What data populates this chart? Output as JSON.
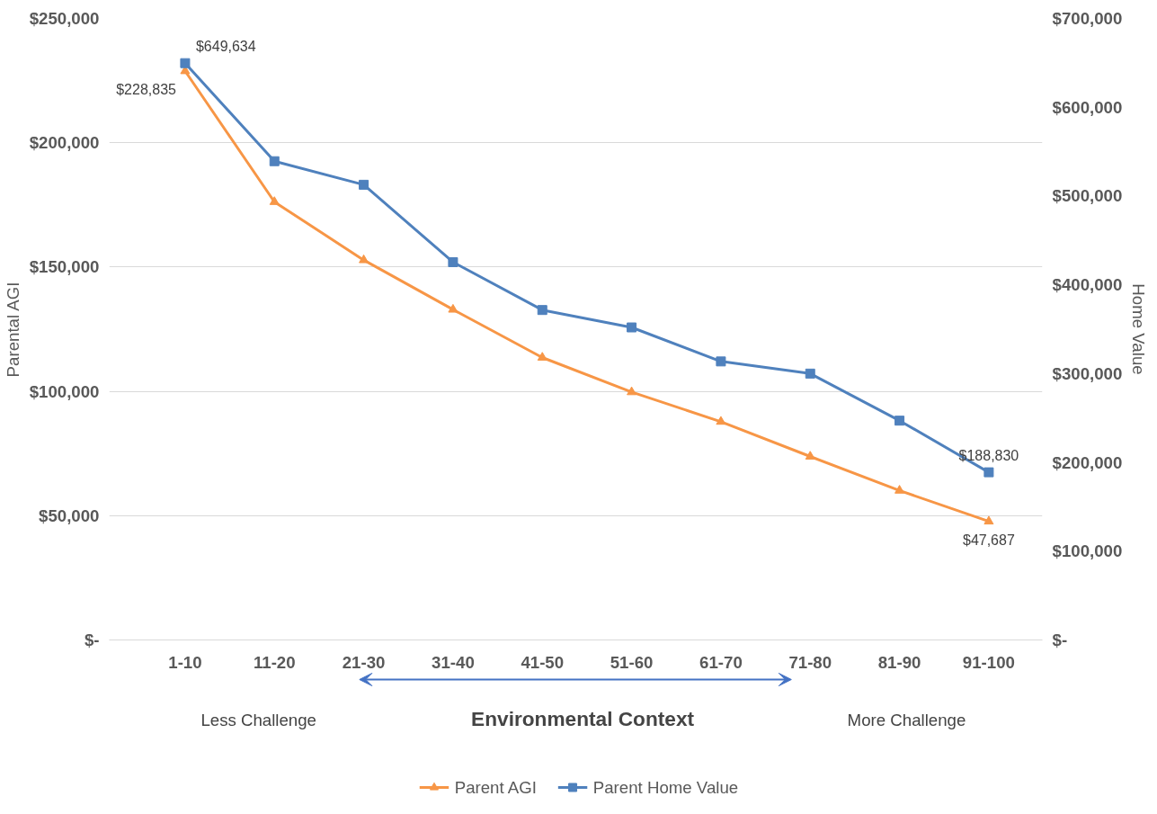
{
  "chart_data": {
    "type": "line",
    "xlabel": "Environmental Context",
    "ylabel": "Parental AGI",
    "y2label": "Home Value",
    "categories": [
      "1-10",
      "11-20",
      "21-30",
      "31-40",
      "41-50",
      "51-60",
      "61-70",
      "71-80",
      "81-90",
      "91-100"
    ],
    "series": [
      {
        "name": "Parent AGI",
        "color": "#f79646",
        "marker": "triangle",
        "values": [
          228835,
          176200,
          152800,
          132900,
          113600,
          99700,
          87800,
          73800,
          60100,
          47687
        ],
        "value_labels": [
          "$228,835",
          null,
          null,
          null,
          null,
          null,
          null,
          null,
          null,
          "$47,687"
        ]
      },
      {
        "name": "Parent Home Value",
        "color": "#4f81bd",
        "marker": "square",
        "axis": "y2",
        "values": [
          649634,
          539200,
          512700,
          425500,
          371600,
          352000,
          313700,
          300000,
          247000,
          188830
        ],
        "value_labels": [
          "$649,634",
          null,
          null,
          null,
          null,
          null,
          null,
          null,
          null,
          "$188,830"
        ]
      }
    ],
    "ylim": [
      0,
      250000
    ],
    "yticks": [
      {
        "value": 0,
        "label": "$-"
      },
      {
        "value": 50000,
        "label": "$50,000"
      },
      {
        "value": 100000,
        "label": "$100,000"
      },
      {
        "value": 150000,
        "label": "$150,000"
      },
      {
        "value": 200000,
        "label": "$200,000"
      },
      {
        "value": 250000,
        "label": "$250,000"
      }
    ],
    "y2lim": [
      0,
      700000
    ],
    "y2ticks": [
      {
        "value": 0,
        "label": "$-"
      },
      {
        "value": 100000,
        "label": "$100,000"
      },
      {
        "value": 200000,
        "label": "$200,000"
      },
      {
        "value": 300000,
        "label": "$300,000"
      },
      {
        "value": 400000,
        "label": "$400,000"
      },
      {
        "value": 500000,
        "label": "$500,000"
      },
      {
        "value": 600000,
        "label": "$600,000"
      },
      {
        "value": 700000,
        "label": "$700,000"
      }
    ],
    "annotations": [
      "Less Challenge",
      "More Challenge"
    ],
    "grid": "y",
    "legend": "bottom",
    "line_style": "solid"
  }
}
